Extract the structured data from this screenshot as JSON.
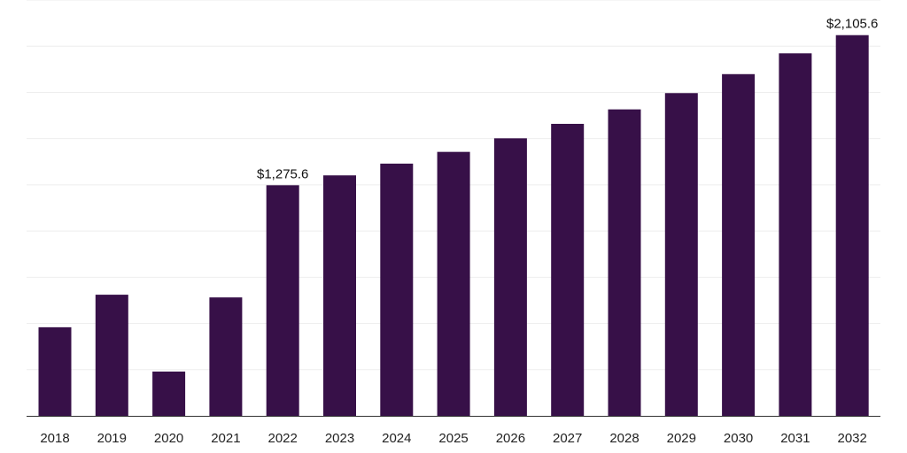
{
  "colors": {
    "bar": "#371048",
    "grid": "#eeeeee",
    "axis": "#333333"
  },
  "chart_data": {
    "type": "bar",
    "title": "",
    "xlabel": "",
    "ylabel": "",
    "ylim": [
      0,
      2300
    ],
    "grid": true,
    "categories": [
      "2018",
      "2019",
      "2020",
      "2021",
      "2022",
      "2023",
      "2024",
      "2025",
      "2026",
      "2027",
      "2028",
      "2029",
      "2030",
      "2031",
      "2032"
    ],
    "values": [
      490,
      670,
      245,
      655,
      1275.6,
      1330,
      1395,
      1460,
      1535,
      1615,
      1695,
      1785,
      1890,
      2005,
      2105.6
    ],
    "data_labels": [
      {
        "index": 4,
        "text": "$1,275.6"
      },
      {
        "index": 14,
        "text": "$2,105.6"
      }
    ]
  }
}
